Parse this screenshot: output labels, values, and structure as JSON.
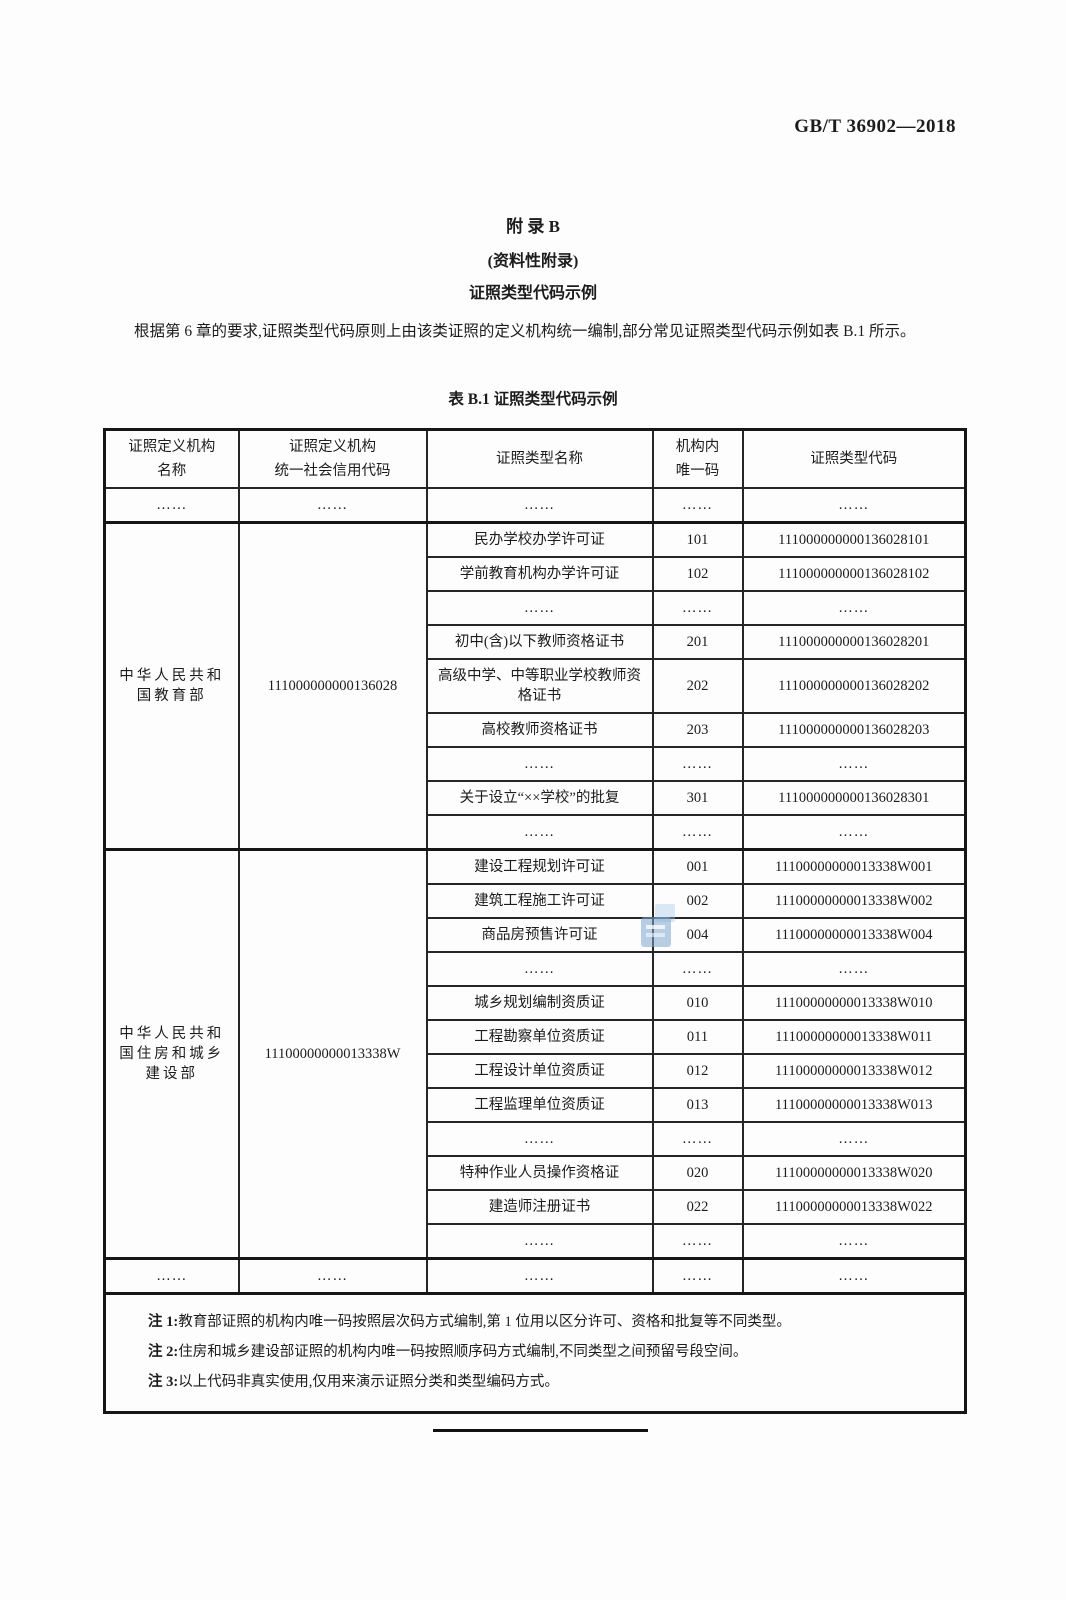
{
  "header": {
    "standard_number": "GB/T 36902—2018"
  },
  "titles": {
    "appendix": "附 录 B",
    "informative": "(资料性附录)",
    "heading": "证照类型代码示例"
  },
  "paragraph": "根据第 6 章的要求,证照类型代码原则上由该类证照的定义机构统一编制,部分常见证照类型代码示例如表 B.1 所示。",
  "table": {
    "caption": "表 B.1  证照类型代码示例",
    "headers": [
      [
        "证照定义机构",
        "名称"
      ],
      [
        "证照定义机构",
        "统一社会信用代码"
      ],
      [
        "证照类型名称"
      ],
      [
        "机构内",
        "唯一码"
      ],
      [
        "证照类型代码"
      ]
    ],
    "ellipsis_row": [
      "……",
      "……",
      "……",
      "……",
      "……"
    ],
    "sections": [
      {
        "org_name": [
          "中华人民共和",
          "国教育部"
        ],
        "org_code": "111000000000136028",
        "rows": [
          [
            "民办学校办学许可证",
            "101",
            "111000000000136028101"
          ],
          [
            "学前教育机构办学许可证",
            "102",
            "111000000000136028102"
          ],
          [
            "……",
            "……",
            "……"
          ],
          [
            "初中(含)以下教师资格证书",
            "201",
            "111000000000136028201"
          ],
          [
            "高级中学、中等职业学校教师资格证书",
            "202",
            "111000000000136028202"
          ],
          [
            "高校教师资格证书",
            "203",
            "111000000000136028203"
          ],
          [
            "……",
            "……",
            "……"
          ],
          [
            "关于设立“××学校”的批复",
            "301",
            "111000000000136028301"
          ],
          [
            "……",
            "……",
            "……"
          ]
        ]
      },
      {
        "org_name": [
          "中华人民共和",
          "国住房和城乡",
          "建设部"
        ],
        "org_code": "11100000000013338W",
        "rows": [
          [
            "建设工程规划许可证",
            "001",
            "11100000000013338W001"
          ],
          [
            "建筑工程施工许可证",
            "002",
            "11100000000013338W002"
          ],
          [
            "商品房预售许可证",
            "004",
            "11100000000013338W004"
          ],
          [
            "……",
            "……",
            "……"
          ],
          [
            "城乡规划编制资质证",
            "010",
            "11100000000013338W010"
          ],
          [
            "工程勘察单位资质证",
            "011",
            "11100000000013338W011"
          ],
          [
            "工程设计单位资质证",
            "012",
            "11100000000013338W012"
          ],
          [
            "工程监理单位资质证",
            "013",
            "11100000000013338W013"
          ],
          [
            "……",
            "……",
            "……"
          ],
          [
            "特种作业人员操作资格证",
            "020",
            "11100000000013338W020"
          ],
          [
            "建造师注册证书",
            "022",
            "11100000000013338W022"
          ],
          [
            "……",
            "……",
            "……"
          ]
        ]
      }
    ],
    "footer_row": [
      "……",
      "……",
      "……",
      "……",
      "……"
    ],
    "notes": [
      {
        "label": "注 1:",
        "text": "教育部证照的机构内唯一码按照层次码方式编制,第 1 位用以区分许可、资格和批复等不同类型。"
      },
      {
        "label": "注 2:",
        "text": "住房和城乡建设部证照的机构内唯一码按照顺序码方式编制,不同类型之间预留号段空间。"
      },
      {
        "label": "注 3:",
        "text": "以上代码非真实使用,仅用来演示证照分类和类型编码方式。"
      }
    ]
  }
}
